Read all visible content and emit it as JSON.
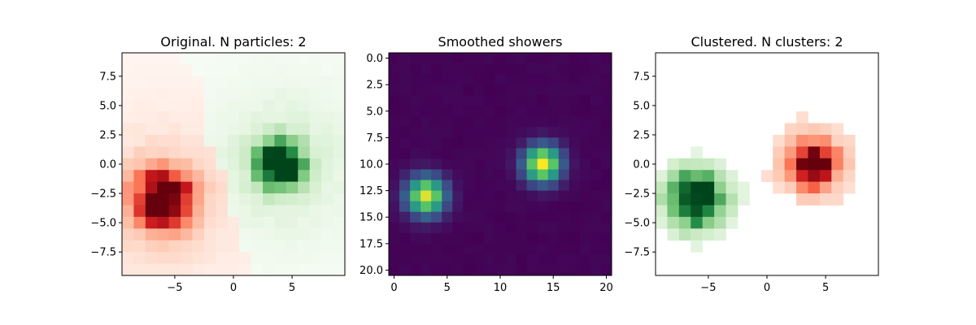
{
  "chart_data": [
    {
      "type": "heatmap",
      "title": "Original. N particles: 2",
      "colormap": "red-green diverging (red = one particle, green = other)",
      "xlim": [
        -9.5,
        9.5
      ],
      "ylim": [
        -9.5,
        9.5
      ],
      "xticks": [
        -5,
        0,
        5
      ],
      "yticks": [
        7.5,
        5.0,
        2.5,
        0.0,
        -2.5,
        -5.0,
        -7.5
      ],
      "xtick_labels": [
        "−5",
        "0",
        "5"
      ],
      "ytick_labels": [
        "7.5",
        "5.0",
        "2.5",
        "0.0",
        "−2.5",
        "−5.0",
        "−7.5"
      ],
      "clusters": [
        {
          "color": "red",
          "center": [
            -6,
            -3
          ],
          "peak": 1.0,
          "sigma": 1.7,
          "halo": 0.13,
          "halo_sigma": 4.5
        },
        {
          "color": "green",
          "center": [
            4,
            0
          ],
          "peak": 1.0,
          "sigma": 1.4,
          "halo": 0.13,
          "halo_sigma": 4.5
        }
      ]
    },
    {
      "type": "heatmap",
      "title": "Smoothed showers",
      "colormap": "viridis",
      "xlim": [
        -0.5,
        20.5
      ],
      "ylim": [
        20.5,
        -0.5
      ],
      "xticks": [
        0,
        5,
        10,
        15,
        20
      ],
      "yticks": [
        0.0,
        2.5,
        5.0,
        7.5,
        10.0,
        12.5,
        15.0,
        17.5,
        20.0
      ],
      "xtick_labels": [
        "0",
        "5",
        "10",
        "15",
        "20"
      ],
      "ytick_labels": [
        "0.0",
        "2.5",
        "5.0",
        "7.5",
        "10.0",
        "12.5",
        "15.0",
        "17.5",
        "20.0"
      ],
      "peaks": [
        {
          "col": 3,
          "row": 13,
          "peak": 0.95,
          "sigma": 1.3
        },
        {
          "col": 14,
          "row": 10,
          "peak": 1.0,
          "sigma": 1.25
        }
      ]
    },
    {
      "type": "heatmap",
      "title": "Clustered. N clusters: 2",
      "colormap": "red-green diverging (masked background)",
      "xlim": [
        -9.5,
        9.5
      ],
      "ylim": [
        -9.5,
        9.5
      ],
      "xticks": [
        -5,
        0,
        5
      ],
      "yticks": [
        7.5,
        5.0,
        2.5,
        0.0,
        -2.5,
        -5.0,
        -7.5
      ],
      "xtick_labels": [
        "−5",
        "0",
        "5"
      ],
      "ytick_labels": [
        "7.5",
        "5.0",
        "2.5",
        "0.0",
        "−2.5",
        "−5.0",
        "−7.5"
      ],
      "clusters": [
        {
          "color": "green",
          "center": [
            -6,
            -3
          ],
          "peak": 1.0,
          "sigma": 1.5,
          "halo": 0.25,
          "halo_sigma": 2.5
        },
        {
          "color": "red",
          "center": [
            4,
            0
          ],
          "peak": 1.0,
          "sigma": 1.2,
          "halo": 0.2,
          "halo_sigma": 3.0
        }
      ]
    }
  ]
}
